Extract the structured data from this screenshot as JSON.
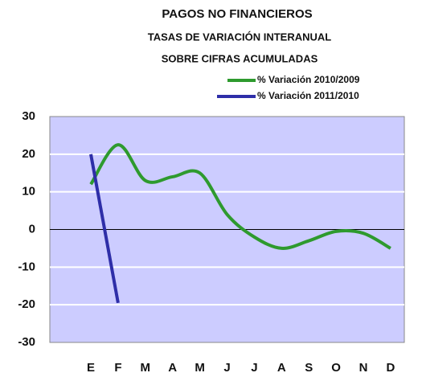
{
  "chart_data": {
    "type": "line",
    "title": "PAGOS NO FINANCIEROS",
    "subtitle": [
      "TASAS DE VARIACIÓN INTERANUAL",
      "SOBRE CIFRAS ACUMULADAS"
    ],
    "categories": [
      "E",
      "F",
      "M",
      "A",
      "M",
      "J",
      "J",
      "A",
      "S",
      "O",
      "N",
      "D"
    ],
    "series": [
      {
        "name": "% Variación 2010/2009",
        "color": "#2e9a2e",
        "values": [
          12,
          22.5,
          13,
          14,
          15,
          4,
          -2,
          -5,
          -3,
          -0.5,
          -1,
          -5
        ]
      },
      {
        "name": "% Variación 2011/2010",
        "color": "#2e2ea8",
        "values": [
          20,
          -19.5,
          null,
          null,
          null,
          null,
          null,
          null,
          null,
          null,
          null,
          null
        ]
      }
    ],
    "ylim": [
      -30,
      30
    ],
    "yticks": [
      -30,
      -20,
      -10,
      0,
      10,
      20,
      30
    ],
    "grid": true
  }
}
